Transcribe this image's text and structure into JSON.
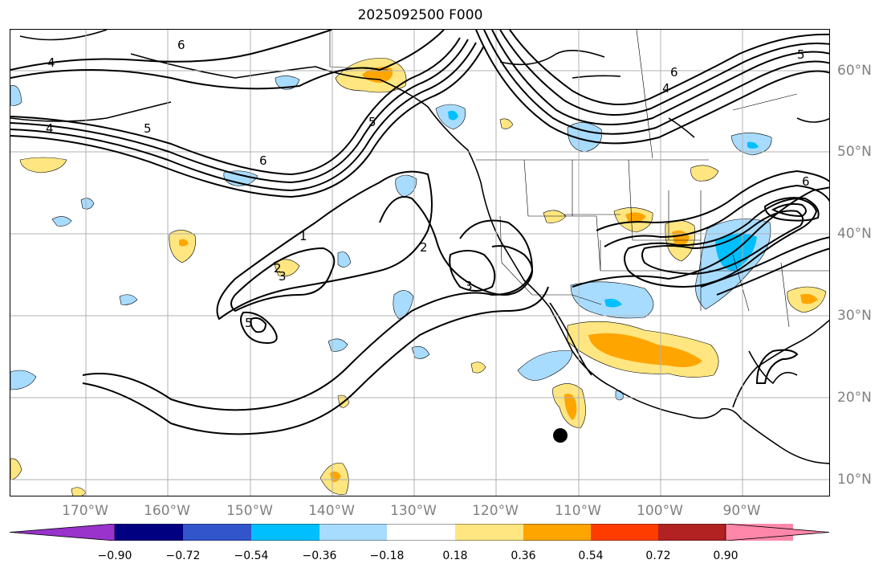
{
  "title": "2025092500 F000",
  "map": {
    "lon_labels": [
      "170°W",
      "160°W",
      "150°W",
      "140°W",
      "130°W",
      "120°W",
      "110°W",
      "100°W",
      "90°W"
    ],
    "lat_labels": [
      "60°N",
      "50°N",
      "40°N",
      "30°N",
      "20°N",
      "10°N"
    ],
    "contour_labels": [
      "4",
      "6",
      "5",
      "4",
      "5",
      "6",
      "1",
      "2",
      "3",
      "5",
      "3",
      "2",
      "5",
      "6",
      "4",
      "6"
    ],
    "marker": "black-dot",
    "colors": {
      "coast": "#000000",
      "grid": "#b0b0b0",
      "contour": "#000000",
      "neg_light": "#a8dcff",
      "neg_mid": "#00bfff",
      "pos_light": "#ffe680",
      "pos_mid": "#ffa500"
    }
  },
  "colorbar": {
    "ticks": [
      "−0.90",
      "−0.72",
      "−0.54",
      "−0.36",
      "−0.18",
      "0.18",
      "0.36",
      "0.54",
      "0.72",
      "0.90"
    ],
    "colors": [
      "#9933cc",
      "#000080",
      "#3355cc",
      "#00bfff",
      "#a8dcff",
      "#ffffff",
      "#ffe680",
      "#ffa500",
      "#ff3c00",
      "#b22222",
      "#ff88aa"
    ]
  }
}
